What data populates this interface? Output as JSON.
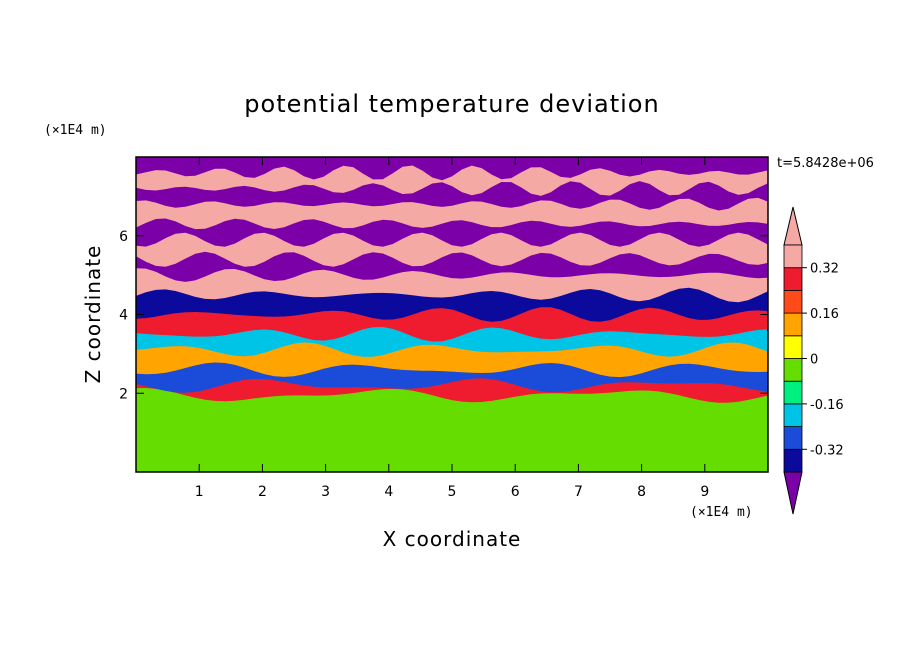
{
  "chart_data": {
    "type": "heatmap",
    "title": "potential temperature deviation",
    "xlabel": "X coordinate",
    "ylabel": "Z coordinate",
    "x_unit": "(×1E4 m)",
    "y_unit": "(×1E4 m)",
    "time_label": "t=5.8428e+06",
    "xlim": [
      0,
      10
    ],
    "ylim": [
      0,
      8
    ],
    "x_ticks": [
      1,
      2,
      3,
      4,
      5,
      6,
      7,
      8,
      9
    ],
    "y_ticks": [
      2,
      4,
      6
    ],
    "x_tick_labels": [
      "1",
      "2",
      "3",
      "4",
      "5",
      "6",
      "7",
      "8",
      "9"
    ],
    "y_tick_labels": [
      "2",
      "4",
      "6"
    ],
    "colorbar": {
      "levels": [
        -0.4,
        -0.32,
        -0.24,
        -0.16,
        -0.08,
        0,
        0.08,
        0.16,
        0.24,
        0.32,
        0.4
      ],
      "colors": [
        "#7b00a8",
        "#0c0a9c",
        "#1a4bd9",
        "#00c4e6",
        "#00f080",
        "#66dd00",
        "#ffff00",
        "#ffa400",
        "#ff4a1a",
        "#ee1c2e",
        "#f5a9a5"
      ],
      "tick_labels": [
        "0.32",
        "0.16",
        "0",
        "-0.16",
        "-0.32"
      ],
      "tick_values": [
        0.32,
        0.16,
        0,
        -0.16,
        -0.32
      ],
      "extend": "both"
    },
    "bands": [
      {
        "z": [
          0,
          1.95
        ],
        "value": -0.04
      },
      {
        "z": [
          1.95,
          2.2
        ],
        "value": 0.3
      },
      {
        "z": [
          2.2,
          2.6
        ],
        "value": -0.3
      },
      {
        "z": [
          2.6,
          3.1
        ],
        "value": 0.1
      },
      {
        "z": [
          3.1,
          3.5
        ],
        "value": -0.2
      },
      {
        "z": [
          3.5,
          4.0
        ],
        "value": 0.25
      },
      {
        "z": [
          4.0,
          4.5
        ],
        "value": -0.38
      },
      {
        "z": [
          4.5,
          5.0
        ],
        "value": 0.45
      },
      {
        "z": [
          5.0,
          5.4
        ],
        "value": -0.45
      },
      {
        "z": [
          5.4,
          5.9
        ],
        "value": 0.45
      },
      {
        "z": [
          5.9,
          6.3
        ],
        "value": -0.45
      },
      {
        "z": [
          6.3,
          6.8
        ],
        "value": 0.45
      },
      {
        "z": [
          6.8,
          7.2
        ],
        "value": -0.45
      },
      {
        "z": [
          7.2,
          7.6
        ],
        "value": 0.45
      },
      {
        "z": [
          7.6,
          7.9
        ],
        "value": -0.45
      }
    ]
  }
}
